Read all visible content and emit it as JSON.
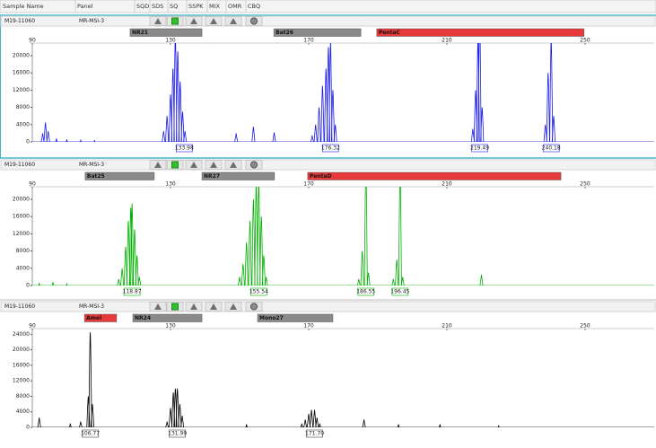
{
  "header": {
    "columns": [
      "Sample Name",
      "Panel",
      "SQD",
      "SDS",
      "SQ",
      "SSPK",
      "MIX",
      "OMR",
      "CBQ"
    ]
  },
  "panels": [
    {
      "sample": "M19-11060",
      "panel": "MR-MSI-3",
      "color": "#1a1ae6",
      "markers": [
        {
          "label": "NR21",
          "range": [
            118.3,
            139.1
          ],
          "color": "#8a8a8a"
        },
        {
          "label": "Bat26",
          "range": [
            159.9,
            185.1
          ],
          "color": "#8a8a8a"
        },
        {
          "label": "PentaC",
          "range": [
            189.7,
            249.7
          ],
          "color": "#e83a3a"
        }
      ],
      "xlim": [
        90,
        270
      ],
      "xticks": [
        90,
        130,
        170,
        210,
        250
      ],
      "ylim": [
        0,
        22500
      ],
      "yticks": [
        0,
        4000,
        8000,
        12000,
        16000,
        20000
      ],
      "peaks": [
        {
          "size": 93,
          "height": 2000
        },
        {
          "size": 93.8,
          "height": 4500
        },
        {
          "size": 94.6,
          "height": 2500
        },
        {
          "size": 97,
          "height": 800
        },
        {
          "size": 100,
          "height": 600
        },
        {
          "size": 104,
          "height": 500
        },
        {
          "size": 108,
          "height": 400
        },
        {
          "size": 128,
          "height": 2500
        },
        {
          "size": 129,
          "height": 6000
        },
        {
          "size": 130,
          "height": 11000
        },
        {
          "size": 130.7,
          "height": 17000
        },
        {
          "size": 131.4,
          "height": 25000
        },
        {
          "size": 132.1,
          "height": 21000
        },
        {
          "size": 132.8,
          "height": 14000
        },
        {
          "size": 133.5,
          "height": 7000
        },
        {
          "size": 134.2,
          "height": 2500
        },
        {
          "size": 149,
          "height": 2000
        },
        {
          "size": 154,
          "height": 3500
        },
        {
          "size": 160,
          "height": 2200
        },
        {
          "size": 171,
          "height": 1500
        },
        {
          "size": 172,
          "height": 4000
        },
        {
          "size": 173,
          "height": 8000
        },
        {
          "size": 174,
          "height": 13000
        },
        {
          "size": 175,
          "height": 17000
        },
        {
          "size": 175.7,
          "height": 22000
        },
        {
          "size": 176.32,
          "height": 23000
        },
        {
          "size": 177,
          "height": 12000
        },
        {
          "size": 177.7,
          "height": 4000
        },
        {
          "size": 217.5,
          "height": 3000
        },
        {
          "size": 218.3,
          "height": 12000
        },
        {
          "size": 219,
          "height": 24000
        },
        {
          "size": 219.49,
          "height": 30000
        },
        {
          "size": 220.2,
          "height": 8000
        },
        {
          "size": 238.5,
          "height": 4000
        },
        {
          "size": 239.3,
          "height": 16000
        },
        {
          "size": 240.18,
          "height": 24000
        },
        {
          "size": 240.9,
          "height": 6000
        }
      ],
      "peak_labels": [
        133.98,
        176.32,
        219.49,
        240.18
      ]
    },
    {
      "sample": "M19-11060",
      "panel": "MR-MSI-3",
      "color": "#00b000",
      "markers": [
        {
          "label": "Bat25",
          "range": [
            105.3,
            125.3
          ],
          "color": "#8a8a8a"
        },
        {
          "label": "NR27",
          "range": [
            139.1,
            160.1
          ],
          "color": "#8a8a8a"
        },
        {
          "label": "PentaD",
          "range": [
            169.7,
            243.0
          ],
          "color": "#e83a3a"
        }
      ],
      "xlim": [
        90,
        270
      ],
      "xticks": [
        90,
        130,
        170,
        210,
        250
      ],
      "ylim": [
        0,
        22500
      ],
      "yticks": [
        0,
        4000,
        8000,
        12000,
        16000,
        20000
      ],
      "peaks": [
        {
          "size": 92,
          "height": 600
        },
        {
          "size": 96,
          "height": 800
        },
        {
          "size": 100,
          "height": 500
        },
        {
          "size": 115,
          "height": 1500
        },
        {
          "size": 116,
          "height": 4000
        },
        {
          "size": 117,
          "height": 9000
        },
        {
          "size": 117.8,
          "height": 15000
        },
        {
          "size": 118.5,
          "height": 18000
        },
        {
          "size": 118.87,
          "height": 19000
        },
        {
          "size": 119.6,
          "height": 13000
        },
        {
          "size": 120.3,
          "height": 7000
        },
        {
          "size": 121,
          "height": 2000
        },
        {
          "size": 150,
          "height": 2000
        },
        {
          "size": 151,
          "height": 5000
        },
        {
          "size": 152,
          "height": 10000
        },
        {
          "size": 153,
          "height": 15000
        },
        {
          "size": 154,
          "height": 20000
        },
        {
          "size": 154.8,
          "height": 23500
        },
        {
          "size": 155.54,
          "height": 24000
        },
        {
          "size": 156.3,
          "height": 16000
        },
        {
          "size": 157,
          "height": 7000
        },
        {
          "size": 157.7,
          "height": 2000
        },
        {
          "size": 184.5,
          "height": 1500
        },
        {
          "size": 185.5,
          "height": 8000
        },
        {
          "size": 186.55,
          "height": 28500
        },
        {
          "size": 187.3,
          "height": 3000
        },
        {
          "size": 194.5,
          "height": 1500
        },
        {
          "size": 195.5,
          "height": 6000
        },
        {
          "size": 196.45,
          "height": 27000
        },
        {
          "size": 197.2,
          "height": 2000
        },
        {
          "size": 220,
          "height": 2500
        }
      ],
      "peak_labels": [
        118.87,
        155.54,
        186.55,
        196.45
      ]
    },
    {
      "sample": "M19-11060",
      "panel": "MR-MSI-3",
      "color": "#000000",
      "markers": [
        {
          "label": "Amel",
          "range": [
            105.1,
            114.4
          ],
          "color": "#e83a3a"
        },
        {
          "label": "NR24",
          "range": [
            119.1,
            139.1
          ],
          "color": "#8a8a8a"
        },
        {
          "label": "Mono27",
          "range": [
            155.2,
            177.0
          ],
          "color": "#8a8a8a"
        }
      ],
      "xlim": [
        90,
        270
      ],
      "xticks": [
        90,
        130,
        170,
        210,
        250
      ],
      "ylim": [
        0,
        25000
      ],
      "yticks": [
        0,
        4000,
        8000,
        12000,
        16000,
        20000,
        24000
      ],
      "peaks": [
        {
          "size": 92,
          "height": 2500
        },
        {
          "size": 101,
          "height": 1000
        },
        {
          "size": 104,
          "height": 1500
        },
        {
          "size": 106.2,
          "height": 8000
        },
        {
          "size": 106.77,
          "height": 24500
        },
        {
          "size": 107.4,
          "height": 6000
        },
        {
          "size": 129,
          "height": 1500
        },
        {
          "size": 130,
          "height": 5000
        },
        {
          "size": 130.8,
          "height": 9000
        },
        {
          "size": 131.4,
          "height": 10000
        },
        {
          "size": 131.99,
          "height": 10000
        },
        {
          "size": 132.7,
          "height": 6000
        },
        {
          "size": 133.4,
          "height": 3000
        },
        {
          "size": 152,
          "height": 800
        },
        {
          "size": 168,
          "height": 1000
        },
        {
          "size": 169,
          "height": 2000
        },
        {
          "size": 170,
          "height": 3500
        },
        {
          "size": 170.8,
          "height": 4500
        },
        {
          "size": 171.7,
          "height": 4500
        },
        {
          "size": 172.4,
          "height": 2500
        },
        {
          "size": 173.2,
          "height": 1000
        },
        {
          "size": 186,
          "height": 2000
        },
        {
          "size": 196,
          "height": 800
        },
        {
          "size": 208,
          "height": 800
        },
        {
          "size": 225,
          "height": 500
        }
      ],
      "peak_labels": [
        106.77,
        131.99,
        {
          "value": 171.7,
          "label": "171.70"
        }
      ]
    }
  ]
}
